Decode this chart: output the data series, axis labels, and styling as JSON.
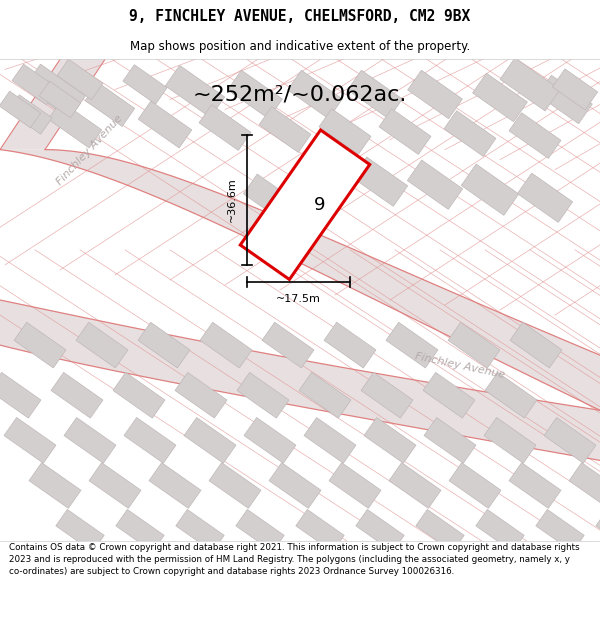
{
  "title": "9, FINCHLEY AVENUE, CHELMSFORD, CM2 9BX",
  "subtitle": "Map shows position and indicative extent of the property.",
  "area_label": "~252m²/~0.062ac.",
  "property_number": "9",
  "dim_height": "~36.6m",
  "dim_width": "~17.5m",
  "street_label_1": "Finchley Avenue",
  "street_label_2": "Finchley Avenue",
  "footer": "Contains OS data © Crown copyright and database right 2021. This information is subject to Crown copyright and database rights 2023 and is reproduced with the permission of HM Land Registry. The polygons (including the associated geometry, namely x, y co-ordinates) are subject to Crown copyright and database rights 2023 Ordnance Survey 100026316.",
  "bg_color": "#ffffff",
  "map_bg": "#f2efef",
  "road_fill": "#e8e0e0",
  "building_color": "#d4cfcf",
  "building_edge": "#c0b8b8",
  "prop_line_color": "#e08080",
  "highlight_color": "#dd0000",
  "footer_bg": "#ffffff"
}
